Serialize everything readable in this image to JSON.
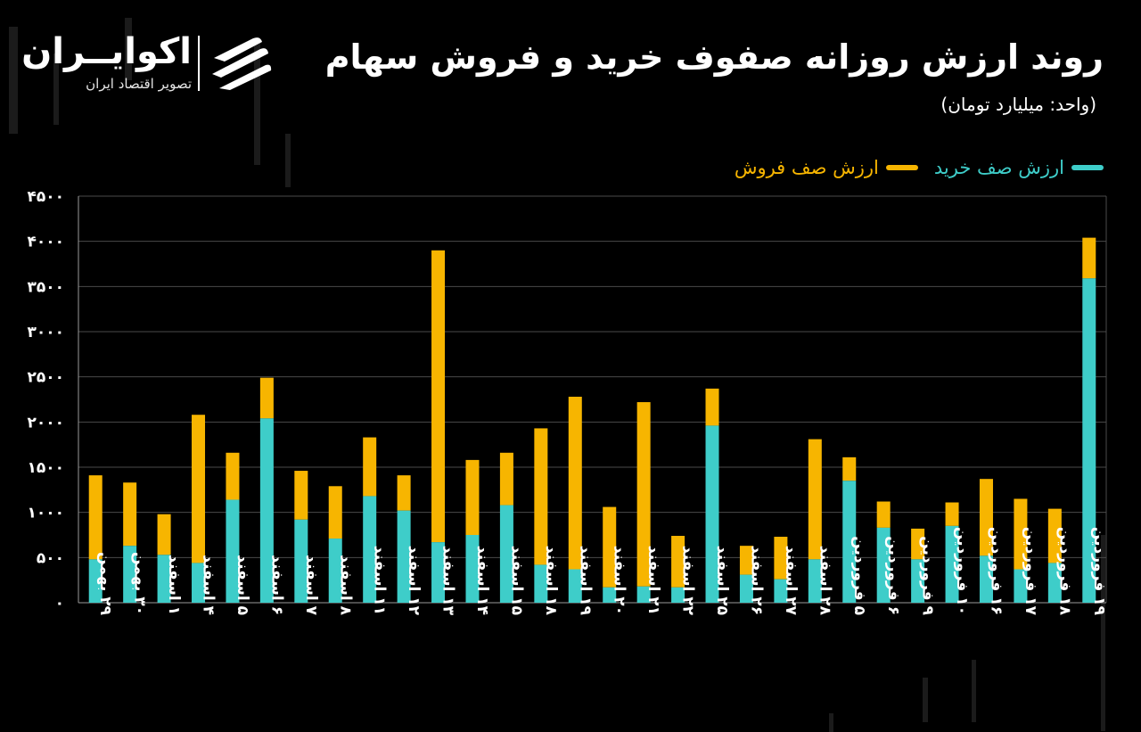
{
  "header": {
    "title": "روند ارزش روزانه صفوف خرید و فروش سهام",
    "subtitle": "(واحد: میلیارد تومان)"
  },
  "brand": {
    "name": "اکوایــران",
    "tagline": "تصویر اقتصاد ایران",
    "logo_icon": "ecoiran-logo-icon"
  },
  "colors": {
    "buy": "#3ecdc9",
    "sell": "#f7b500",
    "background": "#000000",
    "grid": "#4a4a4a"
  },
  "chart_data": {
    "type": "bar",
    "stacked": true,
    "title": "روند ارزش روزانه صفوف خرید و فروش سهام",
    "ylabel": "",
    "xlabel": "",
    "ylim": [
      0,
      4500
    ],
    "y_ticks": [
      0,
      500,
      1000,
      1500,
      2000,
      2500,
      3000,
      3500,
      4000,
      4500
    ],
    "y_tick_labels": [
      "۰",
      "۵۰۰",
      "۱۰۰۰",
      "۱۵۰۰",
      "۲۰۰۰",
      "۲۵۰۰",
      "۳۰۰۰",
      "۳۵۰۰",
      "۴۰۰۰",
      "۴۵۰۰"
    ],
    "grid": true,
    "legend_position": "top-right",
    "categories": [
      "۲۹ بهمن",
      "۳۰ بهمن",
      "۱ اسفند",
      "۴ اسفند",
      "۵ اسفند",
      "۶ اسفند",
      "۷ اسفند",
      "۸ اسفند",
      "۱۱ اسفند",
      "۱۲ اسفند",
      "۱۳ اسفند",
      "۱۴ اسفند",
      "۱۵ اسفند",
      "۱۸ اسفند",
      "۱۹ اسفند",
      "۲۰ اسفند",
      "۲۱ اسفند",
      "۲۲ اسفند",
      "۲۵ اسفند",
      "۲۶ اسفند",
      "۲۷ اسفند",
      "۲۸ اسفند",
      "۵ فروردین",
      "۶ فروردین",
      "۹ فروردین",
      "۱۰ فروردین",
      "۱۶ فروردین",
      "۱۷ فروردین",
      "۱۸ فروردین",
      "۱۹ فروردین"
    ],
    "series": [
      {
        "name": "ارزش صف خرید",
        "values": [
          480,
          630,
          530,
          440,
          1140,
          2040,
          920,
          710,
          1180,
          1020,
          670,
          750,
          1080,
          420,
          370,
          170,
          180,
          170,
          1960,
          310,
          260,
          480,
          1350,
          830,
          480,
          850,
          520,
          370,
          440,
          3590
        ]
      },
      {
        "name": "ارزش صف فروش",
        "values": [
          930,
          700,
          450,
          1640,
          520,
          450,
          540,
          580,
          650,
          390,
          3230,
          830,
          580,
          1510,
          1910,
          890,
          2040,
          570,
          410,
          320,
          470,
          1330,
          260,
          290,
          340,
          260,
          850,
          780,
          600,
          450
        ]
      }
    ]
  }
}
